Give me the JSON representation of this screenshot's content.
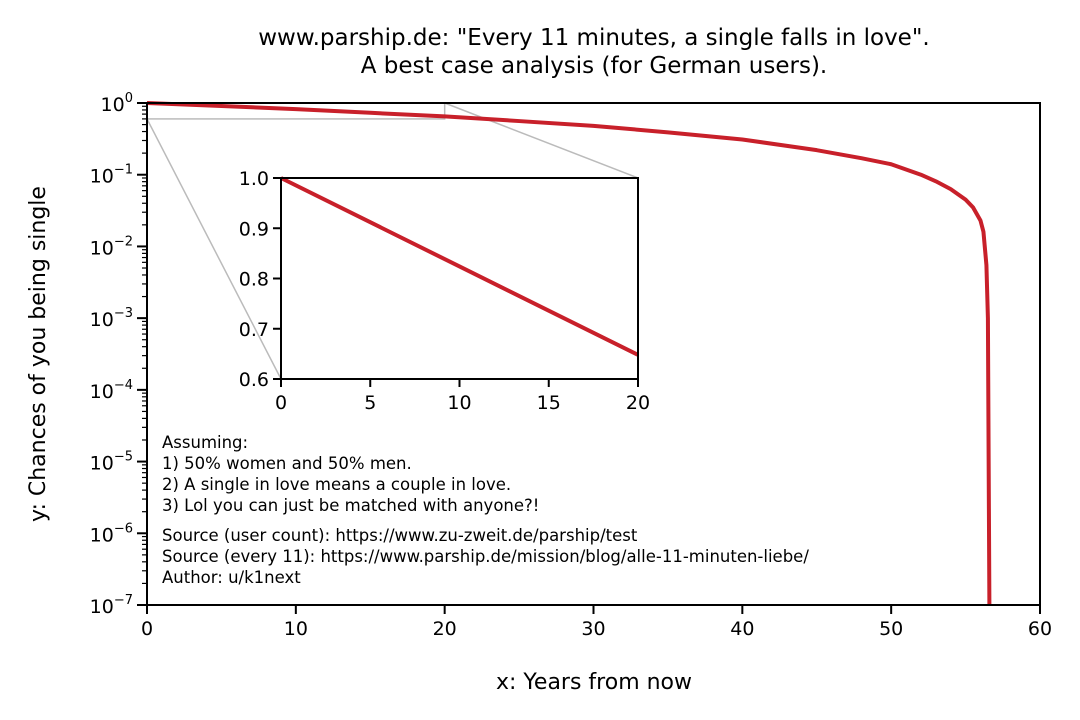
{
  "chart_data": [
    {
      "type": "line",
      "title": "www.parship.de: \"Every 11 minutes, a single falls in love\".",
      "subtitle": "A best case analysis (for German users).",
      "xlabel": "x: Years from now",
      "ylabel": "y: Chances of you being single",
      "yscale": "log",
      "xlim": [
        0,
        60
      ],
      "ylim": [
        1e-07,
        1
      ],
      "x_ticks": [
        "0",
        "10",
        "20",
        "30",
        "40",
        "50",
        "60"
      ],
      "y_ticks": [
        "10",
        "10",
        "10",
        "10",
        "10",
        "10",
        "10",
        "10"
      ],
      "y_tick_exponents": [
        "0",
        "−1",
        "−2",
        "−3",
        "−4",
        "−5",
        "−6",
        "−7"
      ],
      "series": [
        {
          "color": "#c8202a",
          "x": [
            0,
            5,
            10,
            15,
            20,
            25,
            30,
            35,
            40,
            45,
            48,
            50,
            52,
            53,
            54,
            55,
            55.5,
            56,
            56.2,
            56.4,
            56.5,
            56.55,
            56.6
          ],
          "y": [
            1.0,
            0.91,
            0.82,
            0.73,
            0.65,
            0.56,
            0.48,
            0.39,
            0.31,
            0.22,
            0.17,
            0.14,
            0.1,
            0.081,
            0.063,
            0.045,
            0.035,
            0.023,
            0.016,
            0.0055,
            0.001,
            1e-05,
            1e-07
          ]
        }
      ],
      "grid": false,
      "annotations": [
        "Assuming:",
        "1) 50% women and 50% men.",
        "2) A single in love means a couple in love.",
        "3) Lol you can just be matched with anyone?!",
        "Source (user count): https://www.zu-zweit.de/parship/test",
        "Source (every 11): https://www.parship.de/mission/blog/alle-11-minuten-liebe/",
        "Author: u/k1next"
      ]
    },
    {
      "type": "line",
      "xlim": [
        0,
        20
      ],
      "ylim": [
        0.6,
        1.0
      ],
      "x_ticks": [
        "0",
        "5",
        "10",
        "15",
        "20"
      ],
      "y_ticks": [
        "1.0",
        "0.9",
        "0.8",
        "0.7",
        "0.6"
      ],
      "series": [
        {
          "color": "#c8202a",
          "x": [
            0,
            5,
            10,
            15,
            20
          ],
          "y": [
            1.0,
            0.912,
            0.824,
            0.736,
            0.648
          ]
        }
      ],
      "grid": false
    }
  ]
}
